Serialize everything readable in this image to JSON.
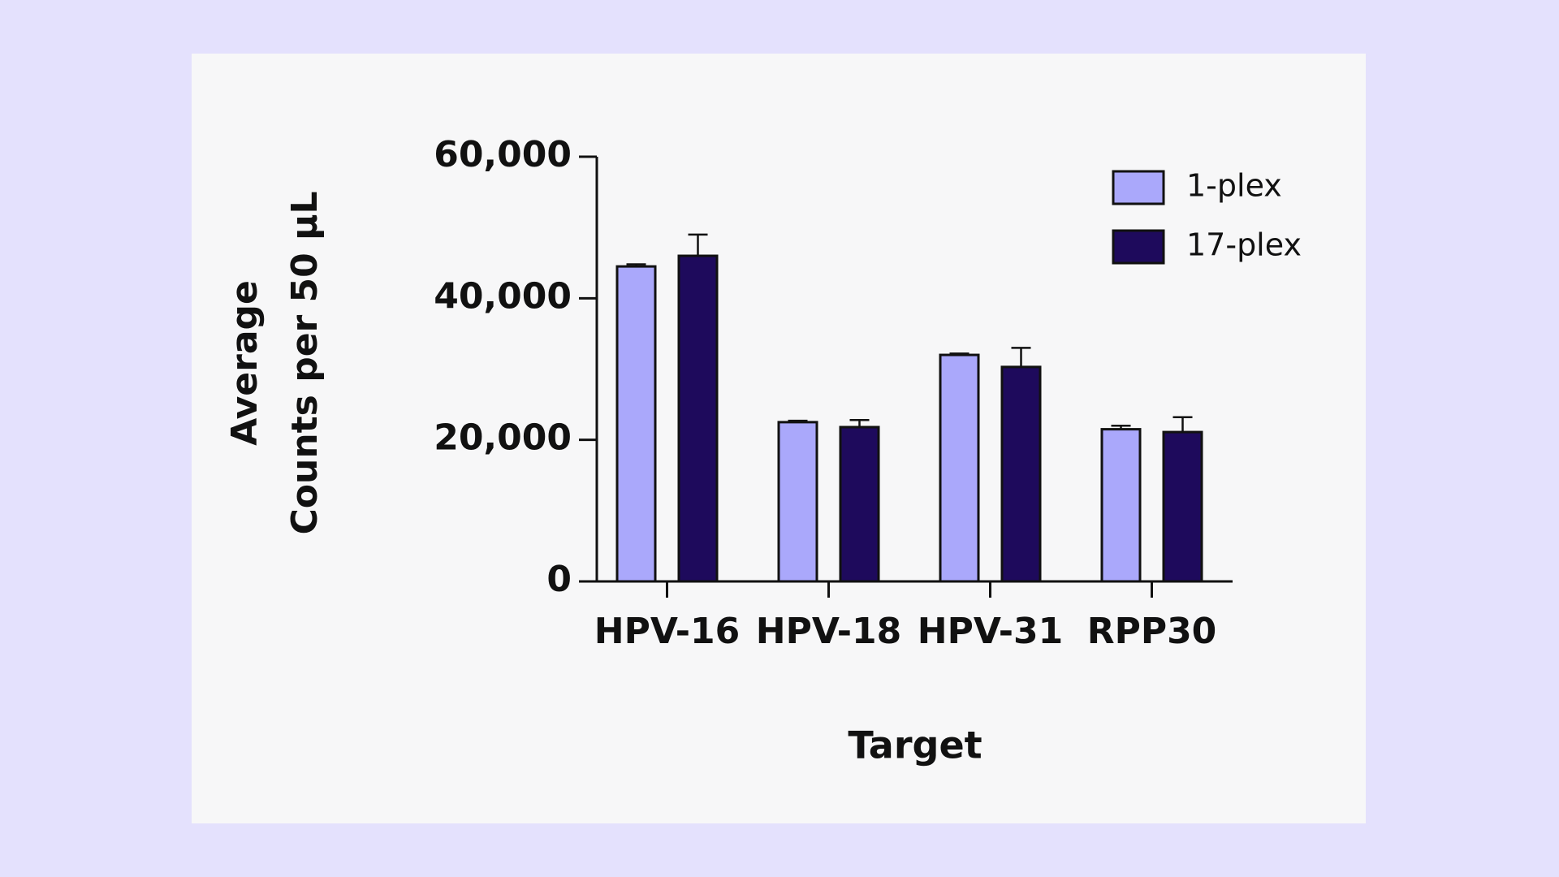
{
  "chart_data": {
    "type": "bar",
    "x_label": "Target",
    "y_label": [
      "Average",
      "Counts per 50 µL"
    ],
    "categories": [
      "HPV-16",
      "HPV-18",
      "HPV-31",
      "RPP30"
    ],
    "series": [
      {
        "name": "1-plex",
        "color": "#aaa8fb",
        "values": [
          44500,
          22500,
          32000,
          21500
        ],
        "errors": [
          300,
          200,
          200,
          500
        ]
      },
      {
        "name": "17-plex",
        "color": "#1e0a5c",
        "values": [
          46000,
          21800,
          30300,
          21100
        ],
        "errors": [
          3000,
          1000,
          2700,
          2100
        ]
      }
    ],
    "ylim": [
      0,
      60000
    ],
    "yticks": [
      0,
      {
        "value": 20000,
        "label": "20,000"
      },
      {
        "value": 40000,
        "label": "40,000"
      },
      {
        "value": 60000,
        "label": "60,000"
      }
    ],
    "legend": "top-right"
  }
}
